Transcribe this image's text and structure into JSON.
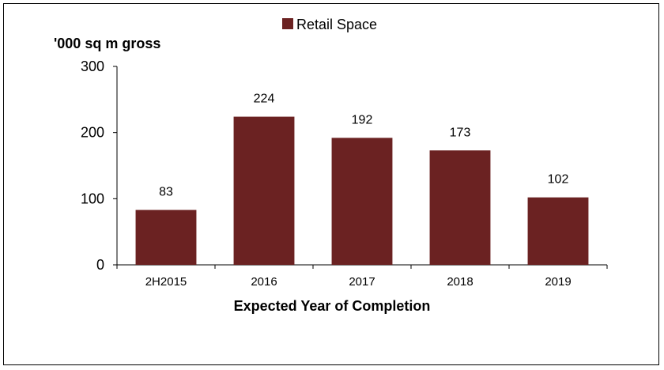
{
  "chart_data": {
    "type": "bar",
    "ylabel": "'000 sq m gross",
    "xlabel": "Expected Year of Completion",
    "categories": [
      "2H2015",
      "2016",
      "2017",
      "2018",
      "2019"
    ],
    "series": [
      {
        "name": "Retail Space",
        "values": [
          83,
          224,
          192,
          173,
          102
        ]
      }
    ],
    "ylim": [
      0,
      300
    ],
    "yticks": [
      0,
      100,
      200,
      300
    ],
    "grid": false,
    "legend": "top-center",
    "colors": {
      "bar": "#6b2222"
    }
  }
}
